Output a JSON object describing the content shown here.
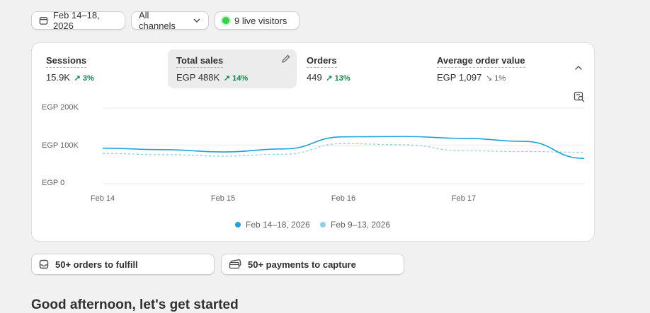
{
  "filters": {
    "date_range": "Feb 14–18, 2026",
    "channel": "All channels",
    "live_visitors": "9 live visitors"
  },
  "metrics": [
    {
      "label": "Sessions",
      "value": "15.9K",
      "delta": "3%",
      "trend": "up"
    },
    {
      "label": "Total sales",
      "value": "EGP 488K",
      "delta": "14%",
      "trend": "up",
      "selected": true
    },
    {
      "label": "Orders",
      "value": "449",
      "delta": "13%",
      "trend": "up"
    },
    {
      "label": "Average order value",
      "value": "EGP 1,097",
      "delta": "1%",
      "trend": "down"
    }
  ],
  "colors": {
    "current_series": "#1ba3e0",
    "previous_series": "#8fcde9",
    "positive_delta": "#0c8a4b",
    "live_dot": "#2fd447"
  },
  "icons": [
    "calendar-icon",
    "chevron-down-icon",
    "live-dot-icon",
    "pencil-icon",
    "chevron-up-icon",
    "search-chart-icon",
    "inbox-icon",
    "card-icon"
  ],
  "chart_data": {
    "type": "line",
    "y_ticks": [
      "EGP 200K",
      "EGP 100K",
      "EGP 0"
    ],
    "x_ticks": [
      "Feb 14",
      "Feb 15",
      "Feb 16",
      "Feb 17"
    ],
    "ylim": [
      0,
      200000
    ],
    "x": [
      14.0,
      14.5,
      15.0,
      15.5,
      16.0,
      16.5,
      17.0,
      17.5,
      18.0
    ],
    "series": [
      {
        "name": "Feb 14–18, 2026",
        "style": "solid",
        "values": [
          94000,
          90000,
          84000,
          92000,
          124000,
          125000,
          120000,
          112000,
          67000
        ]
      },
      {
        "name": "Feb 9–13, 2026",
        "style": "dashed",
        "values": [
          80000,
          77000,
          73000,
          78000,
          106000,
          103000,
          87000,
          85000,
          83000
        ]
      }
    ],
    "grid": true,
    "legend": "bottom"
  },
  "tasks": {
    "orders": "50+ orders to fulfill",
    "payments": "50+ payments to capture"
  },
  "greeting": "Good afternoon, let's get started"
}
